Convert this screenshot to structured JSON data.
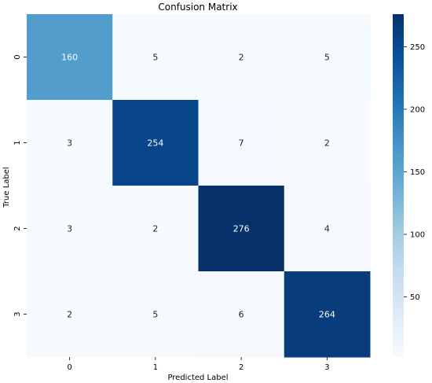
{
  "chart_data": {
    "type": "heatmap",
    "title": "Confusion Matrix",
    "xlabel": "Predicted Label",
    "ylabel": "True Label",
    "x_categories": [
      "0",
      "1",
      "2",
      "3"
    ],
    "y_categories": [
      "0",
      "1",
      "2",
      "3"
    ],
    "matrix": [
      [
        160,
        5,
        2,
        5
      ],
      [
        3,
        254,
        7,
        2
      ],
      [
        3,
        2,
        276,
        4
      ],
      [
        2,
        5,
        6,
        264
      ]
    ],
    "colormap": "Blues",
    "vmin": 2,
    "vmax": 276,
    "colorbar_ticks": [
      "50",
      "100",
      "150",
      "200",
      "250"
    ],
    "colors": {
      "low": "#f7fbff",
      "high": "#08306b"
    }
  }
}
